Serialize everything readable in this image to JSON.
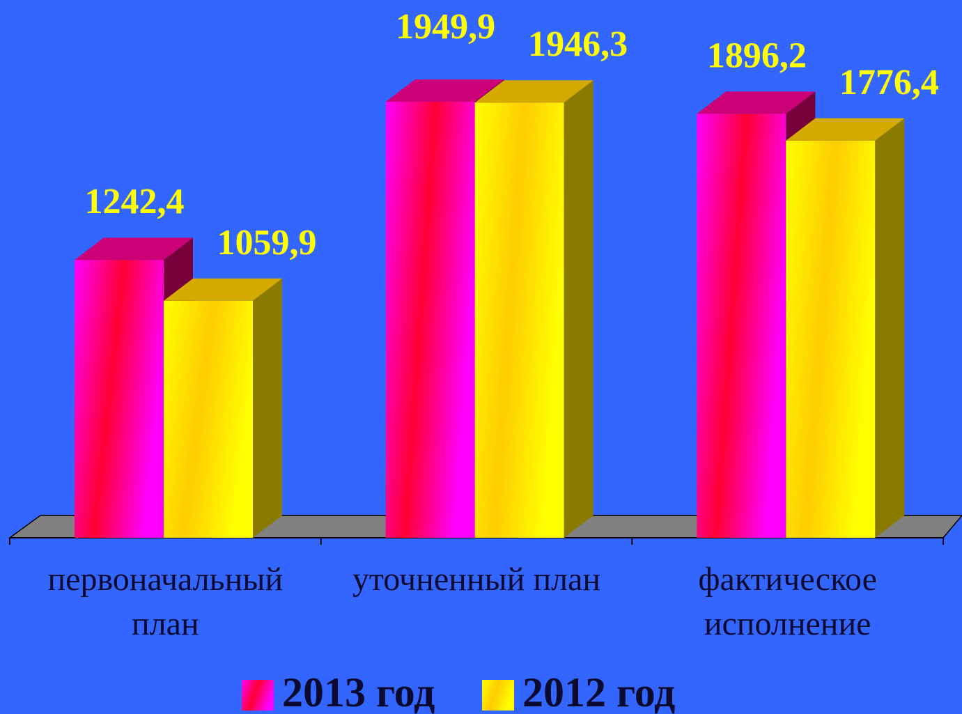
{
  "chart_data": {
    "type": "bar3d",
    "categories": [
      "первоначальный план",
      "уточненный план",
      "фактическое исполнение"
    ],
    "series": [
      {
        "name": "2013 год",
        "color": "#ff0033",
        "values": [
          1242.4,
          1949.9,
          1896.2
        ],
        "value_labels": [
          "1242,4",
          "1949,9",
          "1896,2"
        ]
      },
      {
        "name": "2012 год",
        "color": "#ffcc00",
        "values": [
          1059.9,
          1946.3,
          1776.4
        ],
        "value_labels": [
          "1059,9",
          "1946,3",
          "1776,4"
        ]
      }
    ]
  }
}
